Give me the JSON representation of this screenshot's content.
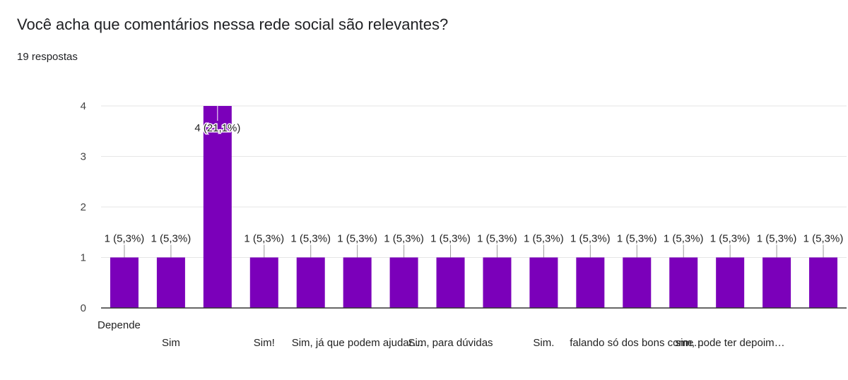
{
  "form": {
    "question": "Você acha que comentários nessa rede social são relevantes?",
    "responses": "19 respostas"
  },
  "colors": {
    "bar": "#7B00BA",
    "grid": "#e6e6e6",
    "axis": "#333333"
  },
  "chart_data": {
    "type": "bar",
    "title": "Você acha que comentários nessa rede social são relevantes?",
    "categories": [
      "Depende",
      "Sim",
      "",
      "Sim!",
      "",
      "Sim, já que podem ajudar…",
      "",
      "Sim, para dúvidas",
      "",
      "Sim.",
      "",
      "falando só dos bons come…",
      "",
      "sim, pode ter depoim…",
      "",
      ""
    ],
    "values": [
      1,
      1,
      4,
      1,
      1,
      1,
      1,
      1,
      1,
      1,
      1,
      1,
      1,
      1,
      1,
      1
    ],
    "labels": [
      "1 (5,3%)",
      "1 (5,3%)",
      "4 (21,1%)",
      "1 (5,3%)",
      "1 (5,3%)",
      "1 (5,3%)",
      "1 (5,3%)",
      "1 (5,3%)",
      "1 (5,3%)",
      "1 (5,3%)",
      "1 (5,3%)",
      "1 (5,3%)",
      "1 (5,3%)",
      "1 (5,3%)",
      "1 (5,3%)",
      "1 (5,3%)"
    ],
    "ylim": [
      0,
      4
    ],
    "yticks": [
      "0",
      "1",
      "2",
      "3",
      "4"
    ],
    "xlabel": "",
    "ylabel": "",
    "grid": true
  }
}
